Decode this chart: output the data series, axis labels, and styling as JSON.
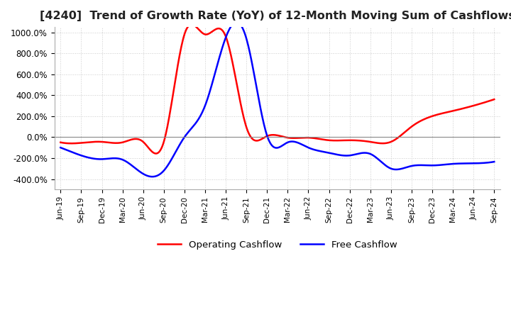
{
  "title": "[4240]  Trend of Growth Rate (YoY) of 12-Month Moving Sum of Cashflows",
  "title_fontsize": 11.5,
  "ylim": [
    -500,
    1050
  ],
  "yticks": [
    -400,
    -200,
    0,
    200,
    400,
    600,
    800,
    1000
  ],
  "ytick_labels": [
    "-400.0%",
    "-200.0%",
    "0.0%",
    "200.0%",
    "400.0%",
    "600.0%",
    "800.0%",
    "1000.0%"
  ],
  "legend_labels": [
    "Operating Cashflow",
    "Free Cashflow"
  ],
  "legend_colors": [
    "#ff0000",
    "#0000ff"
  ],
  "background_color": "#ffffff",
  "grid_color": "#cccccc",
  "dates": [
    "Jun-19",
    "Sep-19",
    "Dec-19",
    "Mar-20",
    "Jun-20",
    "Sep-20",
    "Dec-20",
    "Mar-21",
    "Jun-21",
    "Sep-21",
    "Dec-21",
    "Mar-22",
    "Jun-22",
    "Sep-22",
    "Dec-22",
    "Mar-23",
    "Jun-23",
    "Sep-23",
    "Dec-23",
    "Mar-24",
    "Jun-24",
    "Sep-24"
  ],
  "operating_cashflow": [
    -50,
    -55,
    -45,
    -50,
    -45,
    -45,
    980,
    980,
    960,
    95,
    10,
    -5,
    -5,
    -30,
    -30,
    -45,
    -45,
    100,
    200,
    250,
    300,
    360
  ],
  "free_cashflow": [
    -100,
    -175,
    -210,
    -215,
    -350,
    -320,
    0,
    300,
    950,
    940,
    15,
    -50,
    -100,
    -150,
    -175,
    -160,
    -300,
    -275,
    -270,
    -255,
    -250,
    -235
  ]
}
